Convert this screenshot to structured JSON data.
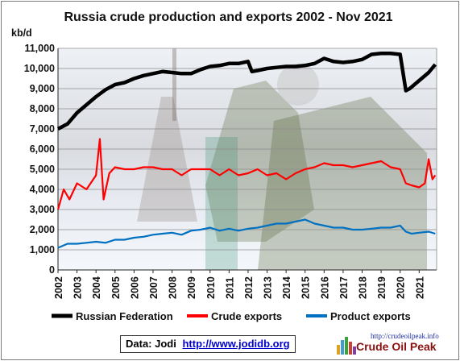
{
  "chart_data": {
    "type": "line",
    "title": "Russia crude production and exports 2002 - Nov 2021",
    "ylabel": "kb/d",
    "ylim": [
      0,
      11000
    ],
    "yticks": [
      "0",
      "1,000",
      "2,000",
      "3,000",
      "4,000",
      "5,000",
      "6,000",
      "7,000",
      "8,000",
      "9,000",
      "10,000",
      "11,000"
    ],
    "xlim": [
      "2002-01",
      "2021-11"
    ],
    "xticks": [
      "2002",
      "2003",
      "2004",
      "2005",
      "2006",
      "2007",
      "2008",
      "2009",
      "2010",
      "2011",
      "2012",
      "2013",
      "2014",
      "2015",
      "2016",
      "2017",
      "2018",
      "2019",
      "2020",
      "2021"
    ],
    "grid": true,
    "legend_position": "bottom",
    "series": [
      {
        "name": "Russian Federation",
        "color": "#000000",
        "points": [
          [
            2002.0,
            7000
          ],
          [
            2002.5,
            7250
          ],
          [
            2003.0,
            7800
          ],
          [
            2003.5,
            8200
          ],
          [
            2004.0,
            8600
          ],
          [
            2004.5,
            8950
          ],
          [
            2005.0,
            9200
          ],
          [
            2005.5,
            9300
          ],
          [
            2006.0,
            9500
          ],
          [
            2006.5,
            9650
          ],
          [
            2007.0,
            9750
          ],
          [
            2007.5,
            9850
          ],
          [
            2008.0,
            9800
          ],
          [
            2008.5,
            9750
          ],
          [
            2009.0,
            9750
          ],
          [
            2009.5,
            9950
          ],
          [
            2010.0,
            10100
          ],
          [
            2010.5,
            10150
          ],
          [
            2011.0,
            10250
          ],
          [
            2011.5,
            10250
          ],
          [
            2012.0,
            10350
          ],
          [
            2012.2,
            9850
          ],
          [
            2012.5,
            9900
          ],
          [
            2013.0,
            10000
          ],
          [
            2013.5,
            10050
          ],
          [
            2014.0,
            10100
          ],
          [
            2014.5,
            10100
          ],
          [
            2015.0,
            10150
          ],
          [
            2015.5,
            10250
          ],
          [
            2016.0,
            10500
          ],
          [
            2016.5,
            10350
          ],
          [
            2017.0,
            10300
          ],
          [
            2017.5,
            10350
          ],
          [
            2018.0,
            10450
          ],
          [
            2018.5,
            10700
          ],
          [
            2019.0,
            10750
          ],
          [
            2019.5,
            10750
          ],
          [
            2020.0,
            10700
          ],
          [
            2020.3,
            8900
          ],
          [
            2020.5,
            9000
          ],
          [
            2021.0,
            9400
          ],
          [
            2021.5,
            9800
          ],
          [
            2021.85,
            10200
          ]
        ]
      },
      {
        "name": "Crude exports",
        "color": "#ff0000",
        "points": [
          [
            2002.0,
            3000
          ],
          [
            2002.3,
            4000
          ],
          [
            2002.6,
            3500
          ],
          [
            2003.0,
            4300
          ],
          [
            2003.5,
            4000
          ],
          [
            2004.0,
            4700
          ],
          [
            2004.2,
            6500
          ],
          [
            2004.4,
            3500
          ],
          [
            2004.7,
            4800
          ],
          [
            2005.0,
            5100
          ],
          [
            2005.5,
            5000
          ],
          [
            2006.0,
            5000
          ],
          [
            2006.5,
            5100
          ],
          [
            2007.0,
            5100
          ],
          [
            2007.5,
            5000
          ],
          [
            2008.0,
            5000
          ],
          [
            2008.5,
            4700
          ],
          [
            2009.0,
            5000
          ],
          [
            2009.5,
            5000
          ],
          [
            2010.0,
            5000
          ],
          [
            2010.5,
            4700
          ],
          [
            2011.0,
            5000
          ],
          [
            2011.5,
            4700
          ],
          [
            2012.0,
            4800
          ],
          [
            2012.5,
            5000
          ],
          [
            2013.0,
            4700
          ],
          [
            2013.5,
            4800
          ],
          [
            2014.0,
            4500
          ],
          [
            2014.5,
            4800
          ],
          [
            2015.0,
            5000
          ],
          [
            2015.5,
            5100
          ],
          [
            2016.0,
            5300
          ],
          [
            2016.5,
            5200
          ],
          [
            2017.0,
            5200
          ],
          [
            2017.5,
            5100
          ],
          [
            2018.0,
            5200
          ],
          [
            2018.5,
            5300
          ],
          [
            2019.0,
            5400
          ],
          [
            2019.5,
            5100
          ],
          [
            2020.0,
            5000
          ],
          [
            2020.3,
            4300
          ],
          [
            2020.6,
            4200
          ],
          [
            2021.0,
            4100
          ],
          [
            2021.3,
            4300
          ],
          [
            2021.5,
            5500
          ],
          [
            2021.7,
            4500
          ],
          [
            2021.85,
            4700
          ]
        ]
      },
      {
        "name": "Product exports",
        "color": "#0070c0",
        "points": [
          [
            2002.0,
            1100
          ],
          [
            2002.5,
            1300
          ],
          [
            2003.0,
            1300
          ],
          [
            2003.5,
            1350
          ],
          [
            2004.0,
            1400
          ],
          [
            2004.5,
            1350
          ],
          [
            2005.0,
            1500
          ],
          [
            2005.5,
            1500
          ],
          [
            2006.0,
            1600
          ],
          [
            2006.5,
            1650
          ],
          [
            2007.0,
            1750
          ],
          [
            2007.5,
            1800
          ],
          [
            2008.0,
            1850
          ],
          [
            2008.5,
            1750
          ],
          [
            2009.0,
            1950
          ],
          [
            2009.5,
            2000
          ],
          [
            2010.0,
            2100
          ],
          [
            2010.5,
            1950
          ],
          [
            2011.0,
            2050
          ],
          [
            2011.5,
            1950
          ],
          [
            2012.0,
            2050
          ],
          [
            2012.5,
            2100
          ],
          [
            2013.0,
            2200
          ],
          [
            2013.5,
            2300
          ],
          [
            2014.0,
            2300
          ],
          [
            2014.5,
            2400
          ],
          [
            2015.0,
            2500
          ],
          [
            2015.5,
            2300
          ],
          [
            2016.0,
            2200
          ],
          [
            2016.5,
            2100
          ],
          [
            2017.0,
            2100
          ],
          [
            2017.5,
            2000
          ],
          [
            2018.0,
            2000
          ],
          [
            2018.5,
            2050
          ],
          [
            2019.0,
            2100
          ],
          [
            2019.5,
            2100
          ],
          [
            2020.0,
            2200
          ],
          [
            2020.3,
            1900
          ],
          [
            2020.6,
            1800
          ],
          [
            2021.0,
            1850
          ],
          [
            2021.5,
            1900
          ],
          [
            2021.85,
            1800
          ]
        ]
      }
    ]
  },
  "source": {
    "label": "Data: Jodi",
    "link": "http://www.jodidb.org"
  },
  "logo": {
    "url": "http://crudeoilpeak.info",
    "name": "Crude Oil Peak"
  }
}
